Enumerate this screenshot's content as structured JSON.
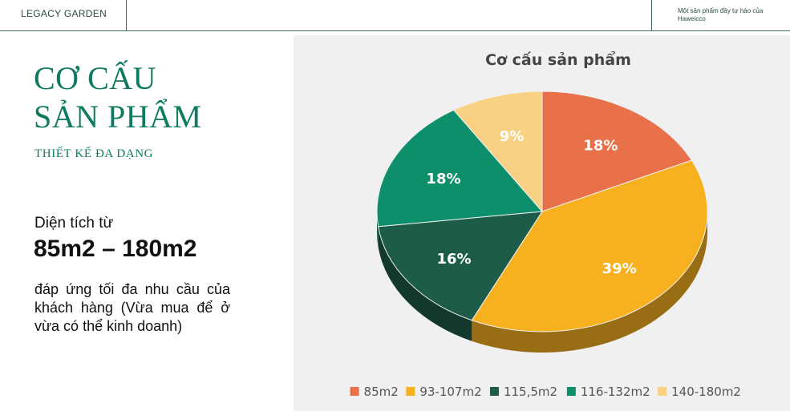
{
  "header": {
    "brand": "LEGACY GARDEN",
    "tagline": "Một sản phẩm đầy tự hào của Haweicco"
  },
  "left": {
    "title_line1": "CƠ CẤU",
    "title_line2": "SẢN PHẨM",
    "subtitle": "THIẾT KẾ ĐA DẠNG",
    "area_label": "Diện tích từ",
    "area_value": "85m2 – 180m2",
    "description": "đáp ứng tối đa nhu cầu của khách hàng (Vừa mua để ở vừa có thể kinh doanh)"
  },
  "chart_data": {
    "type": "pie",
    "style": "3d",
    "title": "Cơ cấu sản phẩm",
    "legend_position": "bottom",
    "slices": [
      {
        "label": "85m2",
        "value": 18,
        "data_label": "18%",
        "color": "#e8714a"
      },
      {
        "label": "93-107m2",
        "value": 39,
        "data_label": "39%",
        "color": "#f7b01e"
      },
      {
        "label": "115,5m2",
        "value": 16,
        "data_label": "16%",
        "color": "#1e5c4a"
      },
      {
        "label": "116-132m2",
        "value": 18,
        "data_label": "18%",
        "color": "#0e8f6c"
      },
      {
        "label": "140-180m2",
        "value": 9,
        "data_label": "9%",
        "color": "#f9d185"
      }
    ]
  }
}
